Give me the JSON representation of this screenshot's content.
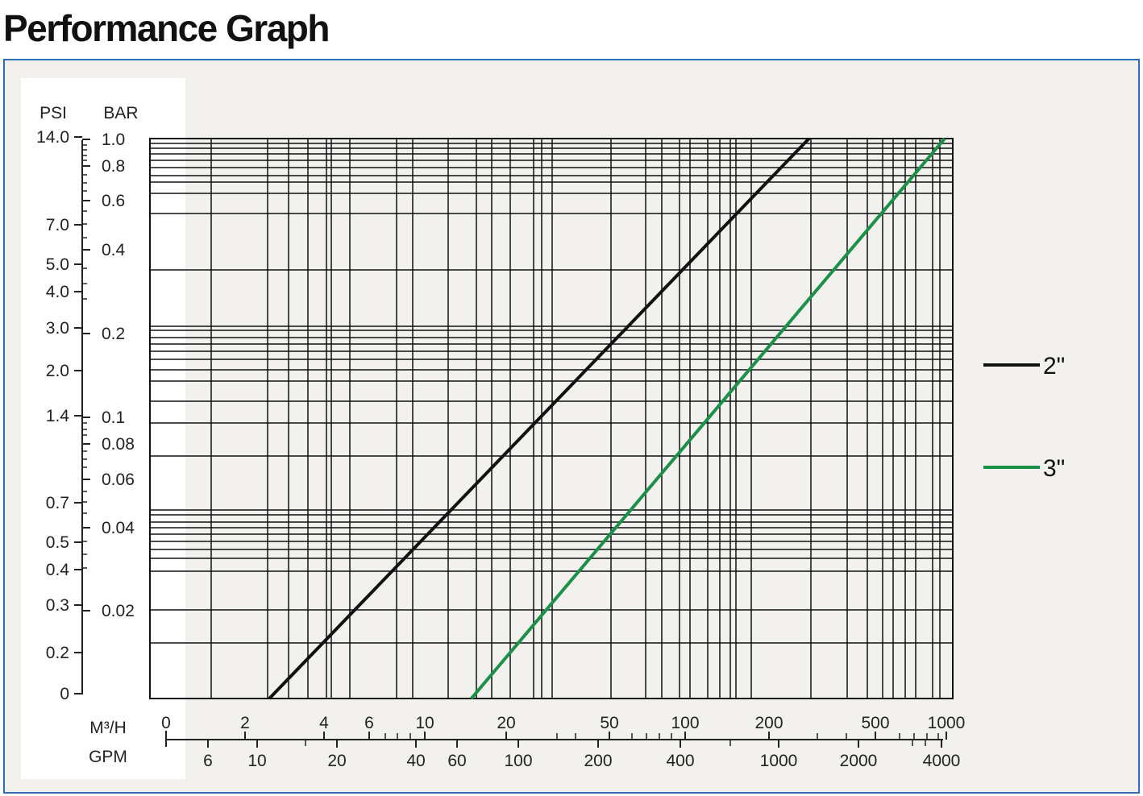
{
  "page": {
    "title": "Performance Graph"
  },
  "chart_data": {
    "type": "line",
    "title": "Performance Graph",
    "left_axes": [
      {
        "label": "PSI",
        "ticks": [
          "14.0",
          "7.0",
          "5.0",
          "4.0",
          "3.0",
          "2.0",
          "1.4",
          "0.7",
          "0.5",
          "0.4",
          "0.3",
          "0.2",
          "0"
        ]
      },
      {
        "label": "BAR",
        "ticks": [
          "1.0",
          "0.8",
          "0.6",
          "0.4",
          "0.2",
          "0.1",
          "0.08",
          "0.06",
          "0.04",
          "0.02"
        ]
      }
    ],
    "bottom_axes": [
      {
        "label": "M³/H",
        "ticks": [
          "0",
          "2",
          "4",
          "6",
          "10",
          "20",
          "50",
          "100",
          "200",
          "500",
          "1000"
        ]
      },
      {
        "label": "GPM",
        "ticks": [
          "6",
          "10",
          "20",
          "40",
          "60",
          "100",
          "200",
          "400",
          "1000",
          "2000",
          "4000"
        ]
      }
    ],
    "x_scale": "log",
    "y_scale": "log",
    "grid": true,
    "legend_position": "right",
    "series": [
      {
        "name": "2\"",
        "color": "#111111",
        "x": [
          2.5,
          300
        ],
        "y": [
          0.0105,
          1.0
        ]
      },
      {
        "name": "3\"",
        "color": "#1a9147",
        "x": [
          15,
          1000
        ],
        "y": [
          0.0105,
          1.0
        ]
      }
    ]
  }
}
